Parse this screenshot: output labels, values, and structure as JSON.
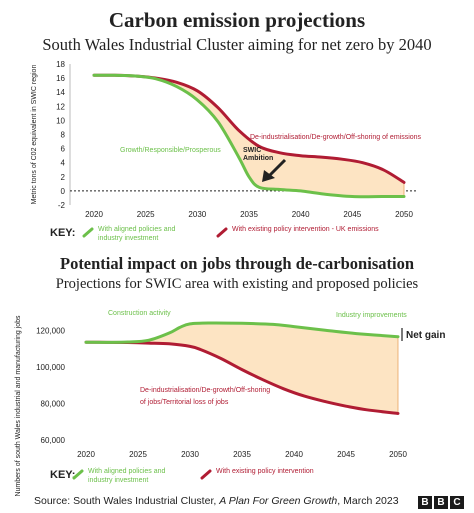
{
  "chart_data": [
    {
      "type": "line",
      "title": "Carbon emission projections",
      "subtitle": "South Wales Industrial Cluster aiming for net zero by 2040",
      "ylabel": "Metric tons of C02 equivalent in SWIC region",
      "xlim": [
        2020,
        2050
      ],
      "ylim": [
        -2,
        18
      ],
      "xticks": [
        2020,
        2025,
        2030,
        2035,
        2040,
        2045,
        2050
      ],
      "yticks": [
        -2,
        0,
        2,
        4,
        6,
        8,
        10,
        12,
        14,
        16,
        18
      ],
      "series": [
        {
          "name": "With aligned policies and industry investment",
          "color": "#6cc04a",
          "x": [
            2020,
            2022,
            2024,
            2026,
            2028,
            2030,
            2032,
            2034,
            2035,
            2036,
            2038,
            2040,
            2042,
            2045,
            2048,
            2050
          ],
          "y": [
            16.4,
            16.4,
            16.3,
            15.9,
            14.8,
            12.9,
            9.8,
            4.8,
            2.0,
            0.5,
            0.2,
            0.0,
            -0.4,
            -0.8,
            -0.8,
            -0.8
          ]
        },
        {
          "name": "With existing policy intervention - UK emissions",
          "color": "#b01c33",
          "x": [
            2020,
            2022,
            2024,
            2026,
            2028,
            2030,
            2032,
            2034,
            2036,
            2038,
            2040,
            2042,
            2044,
            2046,
            2048,
            2050
          ],
          "y": [
            16.4,
            16.4,
            16.3,
            16.0,
            15.4,
            14.2,
            11.8,
            8.6,
            6.3,
            5.4,
            5.0,
            4.8,
            4.5,
            4.0,
            3.0,
            1.2
          ]
        }
      ],
      "annotations": [
        {
          "text": "Growth/Responsible/Prosperous",
          "color": "#6cc04a"
        },
        {
          "text": "De-industrialisation/De-growth/Off-shoring of emissions",
          "color": "#b01c33"
        },
        {
          "text": "SWIC\nAmbition",
          "color": "#222222"
        }
      ],
      "key_label": "KEY:"
    },
    {
      "type": "line",
      "title": "Potential impact on jobs through de-carbonisation",
      "subtitle": "Projections for SWIC area with existing and proposed policies",
      "ylabel": "Numbers of south Wales industrial and manufacturing jobs",
      "xlim": [
        2020,
        2050
      ],
      "ylim": [
        60000,
        130000
      ],
      "xticks": [
        2020,
        2025,
        2030,
        2035,
        2040,
        2045,
        2050
      ],
      "yticks": [
        60000,
        80000,
        100000,
        120000
      ],
      "ytick_labels": [
        "60,000",
        "80,000",
        "100,000",
        "120,000"
      ],
      "series": [
        {
          "name": "With aligned policies and industry investment",
          "color": "#6cc04a",
          "x": [
            2020,
            2022,
            2024,
            2026,
            2028,
            2029,
            2030,
            2032,
            2035,
            2038,
            2040,
            2043,
            2046,
            2050
          ],
          "y": [
            113500,
            113400,
            113600,
            114500,
            118500,
            121500,
            123500,
            124000,
            123800,
            123200,
            122000,
            120000,
            118200,
            116500
          ]
        },
        {
          "name": "With existing policy intervention",
          "color": "#b01c33",
          "x": [
            2020,
            2022,
            2024,
            2026,
            2028,
            2030,
            2031,
            2033,
            2035,
            2037,
            2039,
            2041,
            2043,
            2045,
            2047,
            2050
          ],
          "y": [
            113500,
            113400,
            113300,
            113000,
            112600,
            111200,
            109500,
            104500,
            98500,
            93000,
            88000,
            84000,
            81000,
            78500,
            76500,
            74500
          ]
        }
      ],
      "annotations": [
        {
          "text": "Construction activity",
          "color": "#6cc04a"
        },
        {
          "text": "Industry improvements",
          "color": "#6cc04a"
        },
        {
          "text": "Net gain",
          "color": "#222222"
        },
        {
          "text": "De-industrialisation/De-growth/Off-shoring",
          "color": "#b01c33"
        },
        {
          "text": "of jobs/Territorial loss of jobs",
          "color": "#b01c33"
        }
      ],
      "key_label": "KEY:"
    }
  ],
  "colors": {
    "green": "#6cc04a",
    "red": "#b01c33",
    "fill": "#fde4c3",
    "fill_stroke": "#e8a460"
  },
  "source": {
    "prefix": "Source: South Wales Industrial Cluster, ",
    "italic": "A Plan For Green Growth",
    "suffix": ", March 2023"
  },
  "logo": [
    "B",
    "B",
    "C"
  ]
}
